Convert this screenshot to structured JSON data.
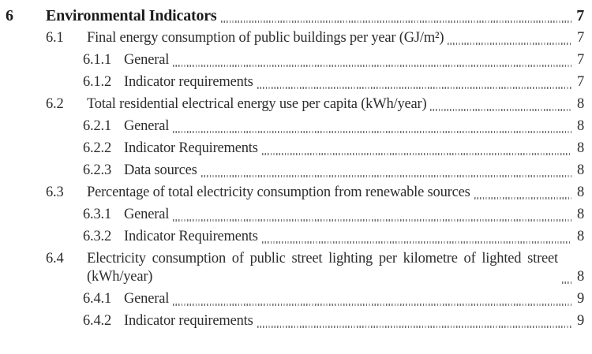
{
  "toc": {
    "section_number": "6",
    "entries": [
      {
        "number": "6",
        "title": "Environmental Indicators",
        "page": "7",
        "level": 1,
        "bold": true
      },
      {
        "number": "6.1",
        "title": "Final energy consumption of public buildings per year (GJ/m²)",
        "page": "7",
        "level": 2,
        "bold": false
      },
      {
        "number": "6.1.1",
        "title": "General",
        "page": "7",
        "level": 3,
        "bold": false
      },
      {
        "number": "6.1.2",
        "title": "Indicator requirements",
        "page": "7",
        "level": 3,
        "bold": false
      },
      {
        "number": "6.2",
        "title": "Total residential electrical energy use per capita (kWh/year)",
        "page": "8",
        "level": 2,
        "bold": false
      },
      {
        "number": "6.2.1",
        "title": "General",
        "page": "8",
        "level": 3,
        "bold": false
      },
      {
        "number": "6.2.2",
        "title": "Indicator Requirements",
        "page": "8",
        "level": 3,
        "bold": false
      },
      {
        "number": "6.2.3",
        "title": "Data sources",
        "page": "8",
        "level": 3,
        "bold": false
      },
      {
        "number": "6.3",
        "title": "Percentage of total electricity consumption from renewable sources",
        "page": "8",
        "level": 2,
        "bold": false
      },
      {
        "number": "6.3.1",
        "title": "General",
        "page": "8",
        "level": 3,
        "bold": false
      },
      {
        "number": "6.3.2",
        "title": "Indicator Requirements",
        "page": "8",
        "level": 3,
        "bold": false
      },
      {
        "number": "6.4",
        "title": "Electricity consumption of public street lighting per kilometre of lighted street (kWh/year)",
        "page": "8",
        "level": 2,
        "bold": false
      },
      {
        "number": "6.4.1",
        "title": "General",
        "page": "9",
        "level": 3,
        "bold": false
      },
      {
        "number": "6.4.2",
        "title": "Indicator requirements",
        "page": "9",
        "level": 3,
        "bold": false
      }
    ]
  },
  "colors": {
    "background": "#ffffff",
    "body_text": "#2d2d2d",
    "heading_text": "#1c1c1c",
    "leader_dots": "#737373"
  }
}
